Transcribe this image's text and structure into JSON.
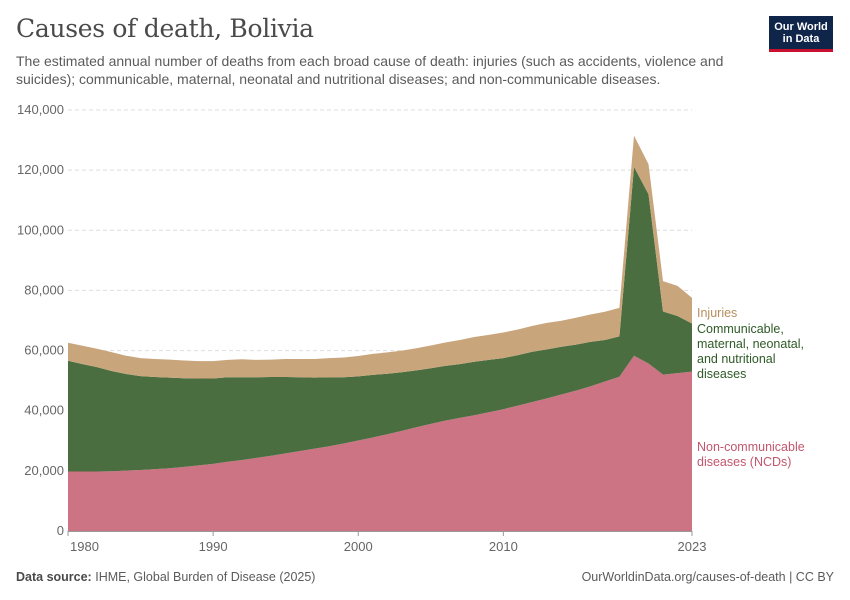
{
  "header": {
    "title": "Causes of death, Bolivia",
    "subtitle": "The estimated annual number of deaths from each broad cause of death: injuries (such as accidents, violence and suicides); communicable, maternal, neonatal and nutritional diseases; and non-communicable diseases.",
    "logo_line1": "Our World",
    "logo_line2": "in Data"
  },
  "footer": {
    "source_label": "Data source:",
    "source_text": "IHME, Global Burden of Disease (2025)",
    "url": "OurWorldinData.org/causes-of-death | CC BY"
  },
  "colors": {
    "ncd": "#cc7384",
    "communicable": "#4a6e40",
    "injuries": "#c9a57c",
    "ncd_label": "#c2566d",
    "communicable_label": "#2f5a27",
    "injuries_label": "#b68e5e",
    "grid": "#dddddd",
    "axis": "#999999"
  },
  "chart_data": {
    "type": "area",
    "stacked": true,
    "title": "Causes of death, Bolivia",
    "xlabel": "",
    "ylabel": "",
    "xlim": [
      1980,
      2023
    ],
    "ylim": [
      0,
      140000
    ],
    "x_ticks": [
      1980,
      1990,
      2000,
      2010,
      2023
    ],
    "x_tick_labels": [
      "1980",
      "1990",
      "2000",
      "2010",
      "2023"
    ],
    "y_ticks": [
      0,
      20000,
      40000,
      60000,
      80000,
      100000,
      120000,
      140000
    ],
    "y_tick_labels": [
      "0",
      "20,000",
      "40,000",
      "60,000",
      "80,000",
      "100,000",
      "120,000",
      "140,000"
    ],
    "x": [
      1980,
      1981,
      1982,
      1983,
      1984,
      1985,
      1986,
      1987,
      1988,
      1989,
      1990,
      1991,
      1992,
      1993,
      1994,
      1995,
      1996,
      1997,
      1998,
      1999,
      2000,
      2001,
      2002,
      2003,
      2004,
      2005,
      2006,
      2007,
      2008,
      2009,
      2010,
      2011,
      2012,
      2013,
      2014,
      2015,
      2016,
      2017,
      2018,
      2019,
      2020,
      2021,
      2022,
      2023
    ],
    "series": [
      {
        "name": "Non-communicable diseases (NCDs)",
        "label": "Non-communicable diseases (NCDs)",
        "values": [
          19800,
          19800,
          19800,
          19900,
          20100,
          20300,
          20600,
          20900,
          21300,
          21800,
          22300,
          23000,
          23600,
          24300,
          25000,
          25800,
          26600,
          27400,
          28200,
          29100,
          30100,
          31100,
          32200,
          33300,
          34500,
          35600,
          36700,
          37600,
          38500,
          39500,
          40500,
          41700,
          42900,
          44100,
          45400,
          46700,
          48100,
          49700,
          51300,
          58300,
          55700,
          52000,
          52500,
          53000
        ]
      },
      {
        "name": "Communicable, maternal, neonatal, and nutritional diseases",
        "label": "Communicable, maternal, neonatal, and nutritional diseases",
        "values": [
          36800,
          35700,
          34700,
          33300,
          32100,
          31200,
          30600,
          30100,
          29500,
          28900,
          28400,
          28100,
          27500,
          26800,
          26200,
          25400,
          24500,
          23600,
          22900,
          22000,
          21300,
          20800,
          20100,
          19500,
          18900,
          18500,
          18200,
          17900,
          17800,
          17400,
          17000,
          16800,
          16700,
          16300,
          15900,
          15300,
          14800,
          13800,
          13400,
          62800,
          56300,
          21000,
          19000,
          16000
        ]
      },
      {
        "name": "Injuries",
        "label": "Injuries",
        "values": [
          6000,
          6100,
          6100,
          6300,
          6100,
          6000,
          6000,
          6000,
          5900,
          5800,
          5800,
          5800,
          6000,
          5800,
          5800,
          6000,
          6100,
          6200,
          6400,
          6600,
          6800,
          7000,
          7100,
          7200,
          7400,
          7600,
          7800,
          8000,
          8200,
          8300,
          8500,
          8500,
          8600,
          8800,
          8600,
          8900,
          9100,
          9400,
          9500,
          10400,
          10000,
          10100,
          10000,
          8500
        ]
      }
    ]
  }
}
